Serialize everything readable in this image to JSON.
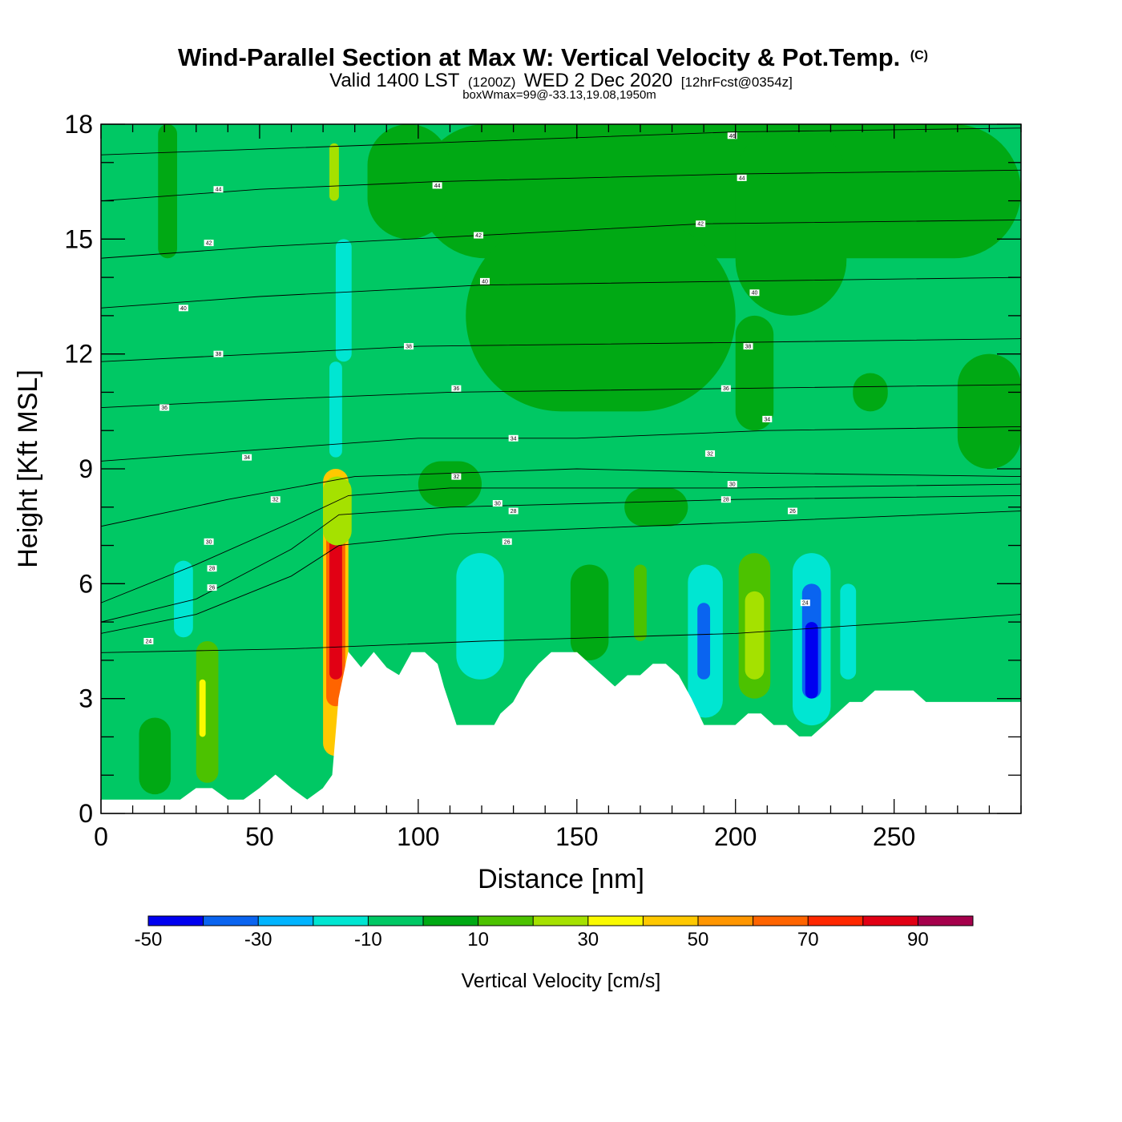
{
  "chart_data": {
    "type": "heatmap",
    "title": "Wind-Parallel Section at Max W: Vertical Velocity & Pot.Temp.",
    "title_mark": "(C)",
    "subtitle": {
      "part1": "Valid 1400 LST",
      "part2": "(1200Z)",
      "part3": "WED 2 Dec 2020",
      "part4": "[12hrFcst@0354z]"
    },
    "note": "boxWmax=99@-33.13,19.08,1950m",
    "xlabel": "Distance [nm]",
    "ylabel": "Height [Kft MSL]",
    "xlim": [
      0,
      290
    ],
    "ylim": [
      0,
      18
    ],
    "x_ticks": [
      0,
      50,
      100,
      150,
      200,
      250
    ],
    "x_tick_labels": [
      "0",
      "50",
      "100",
      "150",
      "200",
      "250"
    ],
    "x_minor_step": 10,
    "y_ticks": [
      0,
      3,
      6,
      9,
      12,
      15,
      18
    ],
    "y_tick_labels": [
      "0",
      "3",
      "6",
      "9",
      "12",
      "15",
      "18"
    ],
    "y_minor_step": 1,
    "colorbar": {
      "label": "Vertical Velocity [cm/s]",
      "bounds": [
        -50,
        -40,
        -30,
        -20,
        -10,
        0,
        10,
        20,
        30,
        40,
        50,
        60,
        70,
        80,
        90,
        100
      ],
      "colors": [
        "#0000f0",
        "#0a64f0",
        "#00b4ff",
        "#00e6d2",
        "#00c864",
        "#00a914",
        "#4cc200",
        "#a5e100",
        "#fafa00",
        "#ffc800",
        "#ff9600",
        "#ff6400",
        "#ff2800",
        "#e10014",
        "#a5004b"
      ],
      "tick_values": [
        -50,
        -30,
        -10,
        10,
        30,
        50,
        70,
        90
      ],
      "tick_labels": [
        "-50",
        "-30",
        "-10",
        "10",
        "30",
        "50",
        "70",
        "90"
      ]
    },
    "background_w_cms": -5,
    "terrain_kft": [
      [
        0,
        0.35
      ],
      [
        5,
        0.35
      ],
      [
        10,
        0.35
      ],
      [
        15,
        0.35
      ],
      [
        20,
        0.35
      ],
      [
        25,
        0.35
      ],
      [
        30,
        0.65
      ],
      [
        35,
        0.65
      ],
      [
        40,
        0.35
      ],
      [
        45,
        0.35
      ],
      [
        50,
        0.65
      ],
      [
        55,
        1.0
      ],
      [
        60,
        0.65
      ],
      [
        65,
        0.35
      ],
      [
        70,
        0.65
      ],
      [
        73,
        1.0
      ],
      [
        75,
        3.0
      ],
      [
        78,
        4.2
      ],
      [
        82,
        3.8
      ],
      [
        86,
        4.2
      ],
      [
        90,
        3.8
      ],
      [
        94,
        3.6
      ],
      [
        98,
        4.2
      ],
      [
        102,
        4.2
      ],
      [
        106,
        3.9
      ],
      [
        108,
        3.3
      ],
      [
        110,
        2.8
      ],
      [
        112,
        2.3
      ],
      [
        116,
        2.3
      ],
      [
        120,
        2.3
      ],
      [
        124,
        2.3
      ],
      [
        126,
        2.6
      ],
      [
        130,
        2.9
      ],
      [
        134,
        3.5
      ],
      [
        138,
        3.9
      ],
      [
        142,
        4.2
      ],
      [
        146,
        4.2
      ],
      [
        150,
        4.2
      ],
      [
        154,
        3.9
      ],
      [
        158,
        3.6
      ],
      [
        162,
        3.3
      ],
      [
        166,
        3.6
      ],
      [
        170,
        3.6
      ],
      [
        174,
        3.9
      ],
      [
        178,
        3.9
      ],
      [
        182,
        3.6
      ],
      [
        186,
        3.0
      ],
      [
        190,
        2.3
      ],
      [
        195,
        2.3
      ],
      [
        200,
        2.3
      ],
      [
        204,
        2.6
      ],
      [
        208,
        2.6
      ],
      [
        212,
        2.3
      ],
      [
        216,
        2.3
      ],
      [
        220,
        2.0
      ],
      [
        224,
        2.0
      ],
      [
        228,
        2.3
      ],
      [
        232,
        2.6
      ],
      [
        236,
        2.9
      ],
      [
        240,
        2.9
      ],
      [
        244,
        3.2
      ],
      [
        248,
        3.2
      ],
      [
        252,
        3.2
      ],
      [
        256,
        3.2
      ],
      [
        260,
        2.9
      ],
      [
        270,
        2.9
      ],
      [
        280,
        2.9
      ],
      [
        290,
        2.9
      ]
    ],
    "w_features": [
      {
        "x0": 0,
        "x1": 290,
        "y0": 0,
        "y1": 18,
        "w": -5
      },
      {
        "x0": 100,
        "x1": 290,
        "y0": 14.5,
        "y1": 18,
        "w": 5
      },
      {
        "x0": 115,
        "x1": 200,
        "y0": 10.5,
        "y1": 15.5,
        "w": 5
      },
      {
        "x0": 84,
        "x1": 110,
        "y0": 15.0,
        "y1": 18,
        "w": 5
      },
      {
        "x0": 18,
        "x1": 24,
        "y0": 14.5,
        "y1": 18,
        "w": 5
      },
      {
        "x0": 200,
        "x1": 235,
        "y0": 13.0,
        "y1": 18,
        "w": 5
      },
      {
        "x0": 237,
        "x1": 248,
        "y0": 10.5,
        "y1": 11.5,
        "w": 5
      },
      {
        "x0": 270,
        "x1": 290,
        "y0": 9.0,
        "y1": 12.0,
        "w": 5
      },
      {
        "x0": 200,
        "x1": 212,
        "y0": 10.0,
        "y1": 13.0,
        "w": 5
      },
      {
        "x0": 30,
        "x1": 37,
        "y0": 0.8,
        "y1": 4.5,
        "w": 15
      },
      {
        "x0": 31,
        "x1": 33,
        "y0": 2.0,
        "y1": 3.5,
        "w": 35
      },
      {
        "x0": 12,
        "x1": 22,
        "y0": 0.5,
        "y1": 2.5,
        "w": 5
      },
      {
        "x0": 23,
        "x1": 29,
        "y0": 4.6,
        "y1": 6.6,
        "w": -15
      },
      {
        "x0": 70,
        "x1": 78,
        "y0": 1.5,
        "y1": 9.0,
        "w": 45
      },
      {
        "x0": 71,
        "x1": 77,
        "y0": 2.8,
        "y1": 8.0,
        "w": 65
      },
      {
        "x0": 72,
        "x1": 76,
        "y0": 3.5,
        "y1": 7.2,
        "w": 85
      },
      {
        "x0": 70,
        "x1": 79,
        "y0": 7.0,
        "y1": 8.8,
        "w": 25
      },
      {
        "x0": 72,
        "x1": 76,
        "y0": 9.3,
        "y1": 11.8,
        "w": -15
      },
      {
        "x0": 74,
        "x1": 79,
        "y0": 11.8,
        "y1": 15.0,
        "w": -15
      },
      {
        "x0": 72,
        "x1": 75,
        "y0": 16.0,
        "y1": 17.5,
        "w": 25
      },
      {
        "x0": 112,
        "x1": 127,
        "y0": 3.5,
        "y1": 6.8,
        "w": -15
      },
      {
        "x0": 148,
        "x1": 160,
        "y0": 4.0,
        "y1": 6.5,
        "w": 5
      },
      {
        "x0": 168,
        "x1": 172,
        "y0": 4.5,
        "y1": 6.5,
        "w": 15
      },
      {
        "x0": 185,
        "x1": 196,
        "y0": 2.5,
        "y1": 6.5,
        "w": -15
      },
      {
        "x0": 188,
        "x1": 192,
        "y0": 3.5,
        "y1": 5.5,
        "w": -35
      },
      {
        "x0": 201,
        "x1": 211,
        "y0": 3.0,
        "y1": 6.8,
        "w": 15
      },
      {
        "x0": 203,
        "x1": 209,
        "y0": 3.5,
        "y1": 5.8,
        "w": 25
      },
      {
        "x0": 218,
        "x1": 230,
        "y0": 2.3,
        "y1": 6.8,
        "w": -15
      },
      {
        "x0": 221,
        "x1": 227,
        "y0": 3.0,
        "y1": 6.0,
        "w": -35
      },
      {
        "x0": 222,
        "x1": 226,
        "y0": 3.0,
        "y1": 5.0,
        "w": -45
      },
      {
        "x0": 233,
        "x1": 238,
        "y0": 3.5,
        "y1": 6.0,
        "w": -15
      },
      {
        "x0": 100,
        "x1": 120,
        "y0": 8.0,
        "y1": 9.2,
        "w": 5
      },
      {
        "x0": 165,
        "x1": 185,
        "y0": 7.5,
        "y1": 8.5,
        "w": 5
      }
    ],
    "isentropes": {
      "unit_note": "",
      "lines": [
        {
          "theta": 24,
          "pts": [
            [
              0,
              4.2
            ],
            [
              60,
              4.3
            ],
            [
              120,
              4.5
            ],
            [
              200,
              4.7
            ],
            [
              290,
              5.2
            ]
          ]
        },
        {
          "theta": 26,
          "pts": [
            [
              0,
              4.7
            ],
            [
              30,
              5.2
            ],
            [
              60,
              6.2
            ],
            [
              75,
              7.0
            ],
            [
              110,
              7.3
            ],
            [
              200,
              7.6
            ],
            [
              290,
              7.9
            ]
          ]
        },
        {
          "theta": 28,
          "pts": [
            [
              0,
              5.0
            ],
            [
              30,
              5.6
            ],
            [
              60,
              6.9
            ],
            [
              75,
              7.8
            ],
            [
              110,
              8.0
            ],
            [
              200,
              8.2
            ],
            [
              290,
              8.3
            ]
          ]
        },
        {
          "theta": 30,
          "pts": [
            [
              0,
              5.5
            ],
            [
              30,
              6.5
            ],
            [
              60,
              7.6
            ],
            [
              78,
              8.3
            ],
            [
              110,
              8.5
            ],
            [
              200,
              8.5
            ],
            [
              290,
              8.6
            ]
          ]
        },
        {
          "theta": 32,
          "pts": [
            [
              0,
              7.5
            ],
            [
              40,
              8.2
            ],
            [
              80,
              8.8
            ],
            [
              150,
              9.0
            ],
            [
              200,
              8.9
            ],
            [
              290,
              8.8
            ]
          ]
        },
        {
          "theta": 34,
          "pts": [
            [
              0,
              9.2
            ],
            [
              50,
              9.5
            ],
            [
              100,
              9.8
            ],
            [
              150,
              9.8
            ],
            [
              210,
              10.0
            ],
            [
              290,
              10.1
            ]
          ]
        },
        {
          "theta": 36,
          "pts": [
            [
              0,
              10.6
            ],
            [
              50,
              10.8
            ],
            [
              110,
              11.0
            ],
            [
              200,
              11.1
            ],
            [
              290,
              11.2
            ]
          ]
        },
        {
          "theta": 38,
          "pts": [
            [
              0,
              11.8
            ],
            [
              50,
              12.0
            ],
            [
              100,
              12.2
            ],
            [
              200,
              12.3
            ],
            [
              290,
              12.4
            ]
          ]
        },
        {
          "theta": 40,
          "pts": [
            [
              0,
              13.2
            ],
            [
              50,
              13.5
            ],
            [
              120,
              13.8
            ],
            [
              200,
              13.9
            ],
            [
              290,
              14.0
            ]
          ]
        },
        {
          "theta": 42,
          "pts": [
            [
              0,
              14.5
            ],
            [
              50,
              14.8
            ],
            [
              120,
              15.1
            ],
            [
              190,
              15.4
            ],
            [
              290,
              15.5
            ]
          ]
        },
        {
          "theta": 44,
          "pts": [
            [
              0,
              16.0
            ],
            [
              50,
              16.3
            ],
            [
              105,
              16.5
            ],
            [
              200,
              16.7
            ],
            [
              290,
              16.8
            ]
          ]
        },
        {
          "theta": 46,
          "pts": [
            [
              0,
              17.2
            ],
            [
              100,
              17.5
            ],
            [
              200,
              17.8
            ],
            [
              290,
              17.9
            ]
          ]
        }
      ],
      "labels": [
        {
          "text": "44",
          "x": 37,
          "y": 16.3
        },
        {
          "text": "44",
          "x": 106,
          "y": 16.4
        },
        {
          "text": "46",
          "x": 199,
          "y": 17.7
        },
        {
          "text": "44",
          "x": 202,
          "y": 16.6
        },
        {
          "text": "42",
          "x": 34,
          "y": 14.9
        },
        {
          "text": "42",
          "x": 119,
          "y": 15.1
        },
        {
          "text": "42",
          "x": 189,
          "y": 15.4
        },
        {
          "text": "40",
          "x": 26,
          "y": 13.2
        },
        {
          "text": "40",
          "x": 121,
          "y": 13.9
        },
        {
          "text": "40",
          "x": 206,
          "y": 13.6
        },
        {
          "text": "38",
          "x": 37,
          "y": 12.0
        },
        {
          "text": "38",
          "x": 97,
          "y": 12.2
        },
        {
          "text": "38",
          "x": 204,
          "y": 12.2
        },
        {
          "text": "36",
          "x": 20,
          "y": 10.6
        },
        {
          "text": "36",
          "x": 112,
          "y": 11.1
        },
        {
          "text": "36",
          "x": 197,
          "y": 11.1
        },
        {
          "text": "34",
          "x": 46,
          "y": 9.3
        },
        {
          "text": "34",
          "x": 130,
          "y": 9.8
        },
        {
          "text": "34",
          "x": 210,
          "y": 10.3
        },
        {
          "text": "32",
          "x": 55,
          "y": 8.2
        },
        {
          "text": "32",
          "x": 112,
          "y": 8.8
        },
        {
          "text": "32",
          "x": 192,
          "y": 9.4
        },
        {
          "text": "30",
          "x": 34,
          "y": 7.1
        },
        {
          "text": "30",
          "x": 125,
          "y": 8.1
        },
        {
          "text": "30",
          "x": 199,
          "y": 8.6
        },
        {
          "text": "28",
          "x": 35,
          "y": 6.4
        },
        {
          "text": "28",
          "x": 130,
          "y": 7.9
        },
        {
          "text": "28",
          "x": 197,
          "y": 8.2
        },
        {
          "text": "26",
          "x": 35,
          "y": 5.9
        },
        {
          "text": "26",
          "x": 128,
          "y": 7.1
        },
        {
          "text": "26",
          "x": 218,
          "y": 7.9
        },
        {
          "text": "24",
          "x": 15,
          "y": 4.5
        },
        {
          "text": "24",
          "x": 222,
          "y": 5.5
        }
      ]
    }
  }
}
